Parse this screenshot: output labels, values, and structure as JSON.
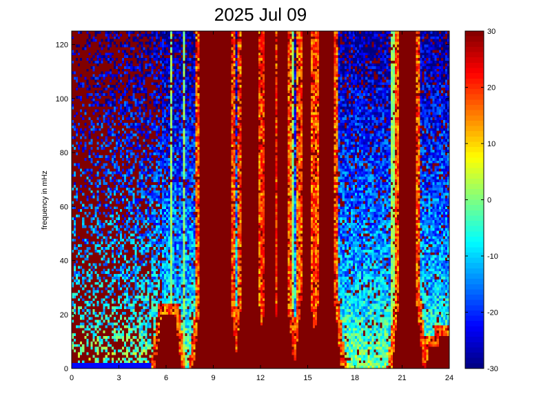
{
  "chart_data": {
    "type": "heatmap",
    "title": "2025 Jul 09",
    "xlabel": "",
    "ylabel": "frequency in mHz",
    "xlim": [
      0,
      24
    ],
    "ylim": [
      0,
      125
    ],
    "xticks": [
      0,
      3,
      6,
      9,
      12,
      15,
      18,
      21,
      24
    ],
    "yticks": [
      0,
      20,
      40,
      60,
      80,
      100,
      120
    ],
    "colorbar": {
      "clim": [
        -30,
        30
      ],
      "ticks": [
        30,
        20,
        10,
        0,
        -10,
        -20,
        -30
      ],
      "colormap": "jet"
    },
    "saturated_events": [
      {
        "start": 5.8,
        "end": 6.5,
        "top_freq": 20
      },
      {
        "start": 8.2,
        "end": 10.1,
        "top_freq": 125
      },
      {
        "start": 10.8,
        "end": 11.9,
        "top_freq": 125
      },
      {
        "start": 12.3,
        "end": 12.9,
        "top_freq": 125
      },
      {
        "start": 13.1,
        "end": 13.7,
        "top_freq": 125
      },
      {
        "start": 14.6,
        "end": 15.2,
        "top_freq": 125
      },
      {
        "start": 15.7,
        "end": 16.7,
        "top_freq": 125
      },
      {
        "start": 20.8,
        "end": 21.9,
        "top_freq": 125
      },
      {
        "start": 23.0,
        "end": 23.4,
        "top_freq": 8
      },
      {
        "start": 23.6,
        "end": 24.0,
        "top_freq": 12
      }
    ]
  },
  "colors": {
    "saturated": "#800000",
    "low": "#00008f"
  }
}
